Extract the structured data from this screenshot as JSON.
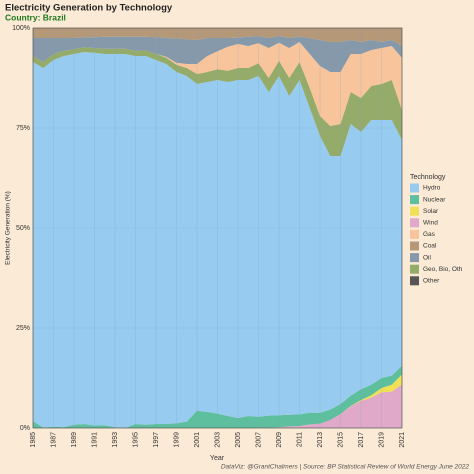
{
  "chart_data": {
    "type": "stacked_area",
    "title": "Electricity Generation by Technology",
    "subtitle": "Country: Brazil",
    "x_label": "Year",
    "y_label": "Electricity Generation (%)",
    "legend_title": "Technology",
    "caption": "DataViz: @GrantChalmers | Source: BP Statistical Review of World Energy June 2022",
    "x": [
      1985,
      1986,
      1987,
      1988,
      1989,
      1990,
      1991,
      1992,
      1993,
      1994,
      1995,
      1996,
      1997,
      1998,
      1999,
      2000,
      2001,
      2002,
      2003,
      2004,
      2005,
      2006,
      2007,
      2008,
      2009,
      2010,
      2011,
      2012,
      2013,
      2014,
      2015,
      2016,
      2017,
      2018,
      2019,
      2020,
      2021
    ],
    "xlim": [
      1985,
      2021
    ],
    "xticks": [
      1985,
      1987,
      1989,
      1991,
      1993,
      1995,
      1997,
      1999,
      2001,
      2003,
      2005,
      2007,
      2009,
      2011,
      2013,
      2015,
      2017,
      2019,
      2021
    ],
    "ylim": [
      0,
      100
    ],
    "yticks": [
      {
        "value": 0,
        "label": "0%"
      },
      {
        "value": 25,
        "label": "25%"
      },
      {
        "value": 50,
        "label": "50%"
      },
      {
        "value": 75,
        "label": "75%"
      },
      {
        "value": 100,
        "label": "100%"
      }
    ],
    "grid": true,
    "legend": "right",
    "series": [
      {
        "name": "Hydro",
        "color": "#97cbef",
        "values": [
          89.8,
          89.9,
          91.7,
          92.8,
          92.7,
          93.0,
          93.2,
          92.8,
          93.3,
          93.5,
          92.0,
          92.2,
          91.0,
          90.0,
          87.8,
          86.4,
          81.7,
          82.5,
          83.4,
          83.5,
          84.5,
          84.0,
          85.2,
          80.9,
          84.8,
          79.7,
          83.6,
          76.2,
          69.2,
          63.4,
          62.0,
          67.9,
          64.3,
          66.2,
          64.5,
          63.9,
          56.4
        ]
      },
      {
        "name": "Nuclear",
        "color": "#5dbf9d",
        "values": [
          1.7,
          0.1,
          0.3,
          0.2,
          0.8,
          1.0,
          0.6,
          0.7,
          0.2,
          0.0,
          1.0,
          0.8,
          1.0,
          1.0,
          1.2,
          1.6,
          4.3,
          4.0,
          3.6,
          3.0,
          2.5,
          3.0,
          2.8,
          3.0,
          3.0,
          2.9,
          2.9,
          2.9,
          2.7,
          2.6,
          2.5,
          2.6,
          2.7,
          2.6,
          2.5,
          2.3,
          2.2
        ]
      },
      {
        "name": "Solar",
        "color": "#efe055",
        "values": [
          0,
          0,
          0,
          0,
          0,
          0,
          0,
          0,
          0,
          0,
          0,
          0,
          0,
          0,
          0,
          0,
          0,
          0,
          0,
          0,
          0,
          0,
          0,
          0,
          0,
          0,
          0,
          0,
          0,
          0,
          0,
          0.1,
          0.2,
          0.6,
          1.1,
          1.7,
          2.5
        ]
      },
      {
        "name": "Wind",
        "color": "#e0a8c9",
        "values": [
          0,
          0,
          0,
          0,
          0,
          0,
          0,
          0,
          0,
          0,
          0,
          0,
          0,
          0,
          0,
          0,
          0,
          0,
          0,
          0,
          0,
          0,
          0,
          0.1,
          0.2,
          0.4,
          0.5,
          0.9,
          1.1,
          2.0,
          3.5,
          5.4,
          6.8,
          7.6,
          8.9,
          9.1,
          10.9
        ]
      },
      {
        "name": "Gas",
        "color": "#f8c49c",
        "values": [
          0,
          0,
          0,
          0,
          0,
          0,
          0,
          0,
          0,
          0,
          0,
          0,
          0,
          0.2,
          0.5,
          1.0,
          2.5,
          4.0,
          4.5,
          6.0,
          6.0,
          5.5,
          5.0,
          7.5,
          4.5,
          7.5,
          5.0,
          8.5,
          12.5,
          13.5,
          13.0,
          9.5,
          11.0,
          9.0,
          9.0,
          8.5,
          13.0
        ]
      },
      {
        "name": "Coal",
        "color": "#b49878",
        "values": [
          2.5,
          2.5,
          2.5,
          2.5,
          2.5,
          2.3,
          2.3,
          2.2,
          2.2,
          2.2,
          2.2,
          2.2,
          2.3,
          2.5,
          2.6,
          2.8,
          3.0,
          2.5,
          2.5,
          2.5,
          2.4,
          2.2,
          2.1,
          2.5,
          2.0,
          2.5,
          2.2,
          2.5,
          3.0,
          3.5,
          3.5,
          3.0,
          3.5,
          3.0,
          3.5,
          3.0,
          4.5
        ]
      },
      {
        "name": "Oil",
        "color": "#8599ab",
        "values": [
          4.5,
          6.0,
          4.0,
          3.2,
          2.8,
          2.5,
          2.7,
          3.0,
          3.0,
          3.0,
          3.5,
          3.4,
          4.2,
          4.7,
          6.1,
          6.2,
          6.0,
          4.5,
          3.3,
          2.2,
          1.6,
          2.3,
          1.7,
          2.5,
          1.7,
          2.5,
          1.3,
          4.0,
          6.5,
          7.5,
          7.5,
          3.5,
          3.0,
          2.5,
          1.5,
          1.5,
          3.0
        ]
      },
      {
        "name": "Geo, Bio, Oth",
        "color": "#94ab6a",
        "values": [
          1.5,
          1.5,
          1.5,
          1.3,
          1.2,
          1.2,
          1.2,
          1.3,
          1.3,
          1.3,
          1.3,
          1.4,
          1.5,
          1.6,
          1.8,
          2.0,
          2.5,
          2.5,
          2.7,
          2.8,
          3.0,
          3.0,
          3.2,
          3.5,
          3.8,
          4.5,
          4.5,
          5.0,
          5.0,
          7.5,
          8.0,
          8.0,
          8.5,
          8.5,
          9.0,
          10.0,
          7.5
        ]
      },
      {
        "name": "Other",
        "color": "#555555",
        "values": [
          0,
          0,
          0,
          0,
          0,
          0,
          0,
          0,
          0,
          0,
          0,
          0,
          0,
          0,
          0,
          0,
          0,
          0,
          0,
          0,
          0,
          0,
          0,
          0,
          0,
          0,
          0,
          0,
          0,
          0,
          0,
          0,
          0,
          0,
          0,
          0,
          0
        ]
      }
    ]
  }
}
